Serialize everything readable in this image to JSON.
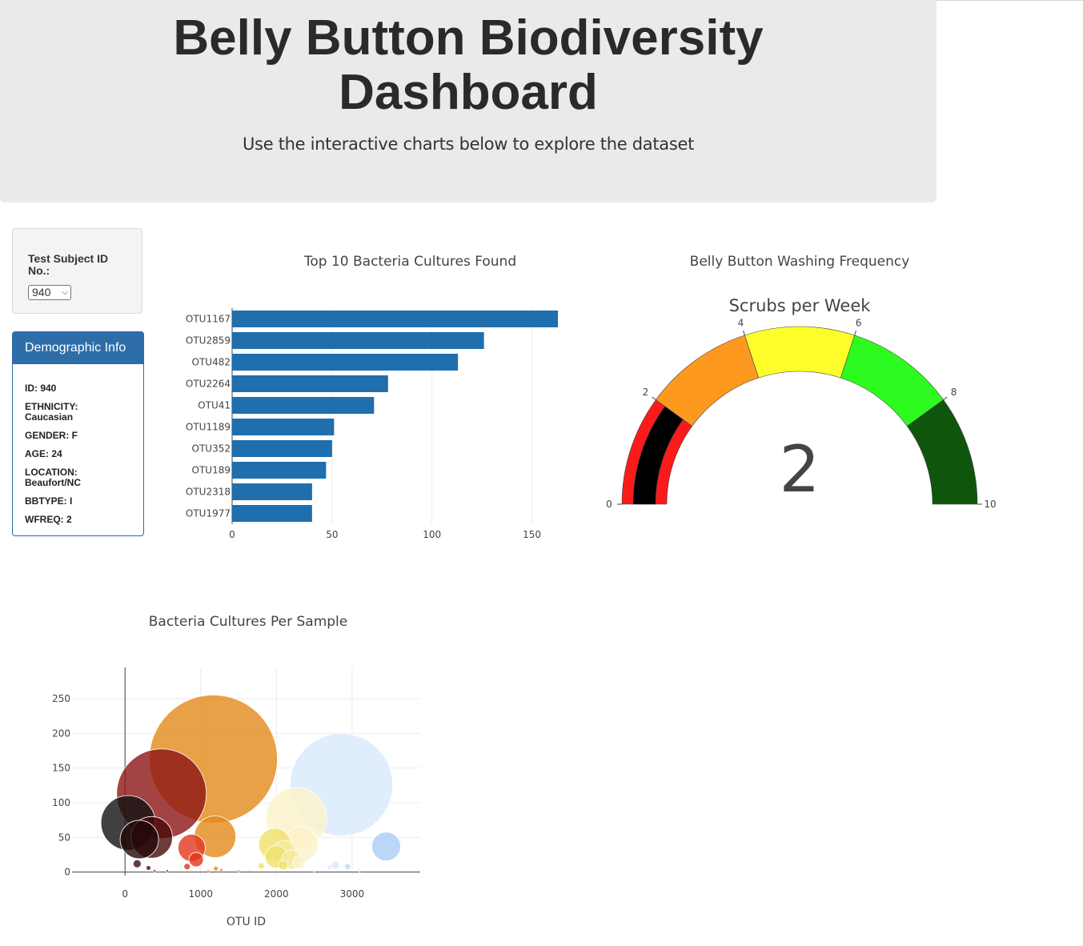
{
  "header": {
    "title_line1": "Belly Button Biodiversity",
    "title_line2": "Dashboard",
    "subtitle": "Use the interactive charts below to explore the dataset"
  },
  "selector": {
    "label": "Test Subject ID No.:",
    "value": "940"
  },
  "demographics": {
    "heading": "Demographic Info",
    "rows": [
      "ID: 940",
      "ETHNICITY: Caucasian",
      "GENDER: F",
      "AGE: 24",
      "LOCATION: Beaufort/NC",
      "BBTYPE: I",
      "WFREQ: 2"
    ]
  },
  "colors": {
    "bar": "#1f6ead",
    "panel_heading": "#2e6ea8"
  },
  "chart_data": [
    {
      "type": "bar",
      "orientation": "horizontal",
      "title": "Top 10 Bacteria Cultures Found",
      "categories": [
        "OTU1167",
        "OTU2859",
        "OTU482",
        "OTU2264",
        "OTU41",
        "OTU1189",
        "OTU352",
        "OTU189",
        "OTU2318",
        "OTU1977"
      ],
      "values": [
        163,
        126,
        113,
        78,
        71,
        51,
        50,
        47,
        40,
        40
      ],
      "xticks": [
        0,
        50,
        100,
        150
      ],
      "xlim": [
        0,
        163
      ],
      "grid": true
    },
    {
      "type": "gauge",
      "title": "Belly Button Washing Frequency",
      "subtitle": "Scrubs per Week",
      "value": 2,
      "range": [
        0,
        10
      ],
      "ticks": [
        0,
        2,
        4,
        6,
        8,
        10
      ],
      "steps": [
        {
          "range": [
            0,
            2
          ],
          "color": "#fb1a1a"
        },
        {
          "range": [
            2,
            4
          ],
          "color": "#fd991f"
        },
        {
          "range": [
            4,
            6
          ],
          "color": "#fdfd2c"
        },
        {
          "range": [
            6,
            8
          ],
          "color": "#2dfb1f"
        },
        {
          "range": [
            8,
            10
          ],
          "color": "#10550c"
        }
      ],
      "bar_color": "#000000"
    },
    {
      "type": "scatter",
      "title": "Bacteria Cultures Per Sample",
      "xlabel": "OTU ID",
      "ylabel": "",
      "xticks": [
        0,
        1000,
        2000,
        3000
      ],
      "yticks": [
        0,
        50,
        100,
        150,
        200,
        250
      ],
      "xlim": [
        -700,
        3900
      ],
      "ylim": [
        -5,
        295
      ],
      "grid": true,
      "points": [
        {
          "x": 1167,
          "y": 163,
          "r": 80,
          "color": "#e48a1a"
        },
        {
          "x": 2859,
          "y": 126,
          "r": 64,
          "color": "#d8e8fb"
        },
        {
          "x": 482,
          "y": 113,
          "r": 56,
          "color": "#8d1414"
        },
        {
          "x": 2264,
          "y": 78,
          "r": 38,
          "color": "#fbf3c8"
        },
        {
          "x": 41,
          "y": 71,
          "r": 34,
          "color": "#111111"
        },
        {
          "x": 1189,
          "y": 51,
          "r": 26,
          "color": "#e48a1a"
        },
        {
          "x": 352,
          "y": 50,
          "r": 26,
          "color": "#4a0a0a"
        },
        {
          "x": 189,
          "y": 47,
          "r": 24,
          "color": "#220808"
        },
        {
          "x": 2318,
          "y": 40,
          "r": 22,
          "color": "#fbf3c8"
        },
        {
          "x": 1977,
          "y": 40,
          "r": 20,
          "color": "#f0e06a"
        },
        {
          "x": 3450,
          "y": 37,
          "r": 18,
          "color": "#a9cdf6"
        },
        {
          "x": 880,
          "y": 35,
          "r": 17,
          "color": "#e1371b"
        },
        {
          "x": 2100,
          "y": 28,
          "r": 15,
          "color": "#f3ea9c"
        },
        {
          "x": 2000,
          "y": 22,
          "r": 14,
          "color": "#f0e06a"
        },
        {
          "x": 2200,
          "y": 18,
          "r": 12,
          "color": "#f3ea9c"
        },
        {
          "x": 940,
          "y": 18,
          "r": 9,
          "color": "#e1371b"
        },
        {
          "x": 2300,
          "y": 14,
          "r": 8,
          "color": "#fbf3c8"
        },
        {
          "x": 2090,
          "y": 10,
          "r": 6,
          "color": "#f0e06a"
        },
        {
          "x": 160,
          "y": 12,
          "r": 5,
          "color": "#3a0c0c"
        },
        {
          "x": 820,
          "y": 8,
          "r": 4,
          "color": "#e1371b"
        },
        {
          "x": 1800,
          "y": 9,
          "r": 4,
          "color": "#f0e06a"
        },
        {
          "x": 2780,
          "y": 10,
          "r": 5,
          "color": "#d8e8fb"
        },
        {
          "x": 2940,
          "y": 8,
          "r": 4,
          "color": "#c0d9f8"
        },
        {
          "x": 2700,
          "y": 7,
          "r": 3,
          "color": "#d8e8fb"
        },
        {
          "x": 310,
          "y": 6,
          "r": 3,
          "color": "#5a0d0d"
        },
        {
          "x": 1200,
          "y": 5,
          "r": 3,
          "color": "#e48a1a"
        },
        {
          "x": 1270,
          "y": 3,
          "r": 2,
          "color": "#e48a1a"
        },
        {
          "x": 1500,
          "y": 2,
          "r": 1.5,
          "color": "#e48a1a"
        },
        {
          "x": 1650,
          "y": 3,
          "r": 1.5,
          "color": "#f0e06a"
        },
        {
          "x": 560,
          "y": 2,
          "r": 1.5,
          "color": "#8d1414"
        },
        {
          "x": 390,
          "y": 2,
          "r": 1.5,
          "color": "#4a0a0a"
        },
        {
          "x": 1100,
          "y": 2,
          "r": 1.5,
          "color": "#e48a1a"
        },
        {
          "x": 2500,
          "y": 2,
          "r": 1.5,
          "color": "#fbf3c8"
        },
        {
          "x": 3100,
          "y": 2,
          "r": 1.5,
          "color": "#c0d9f8"
        }
      ]
    }
  ]
}
